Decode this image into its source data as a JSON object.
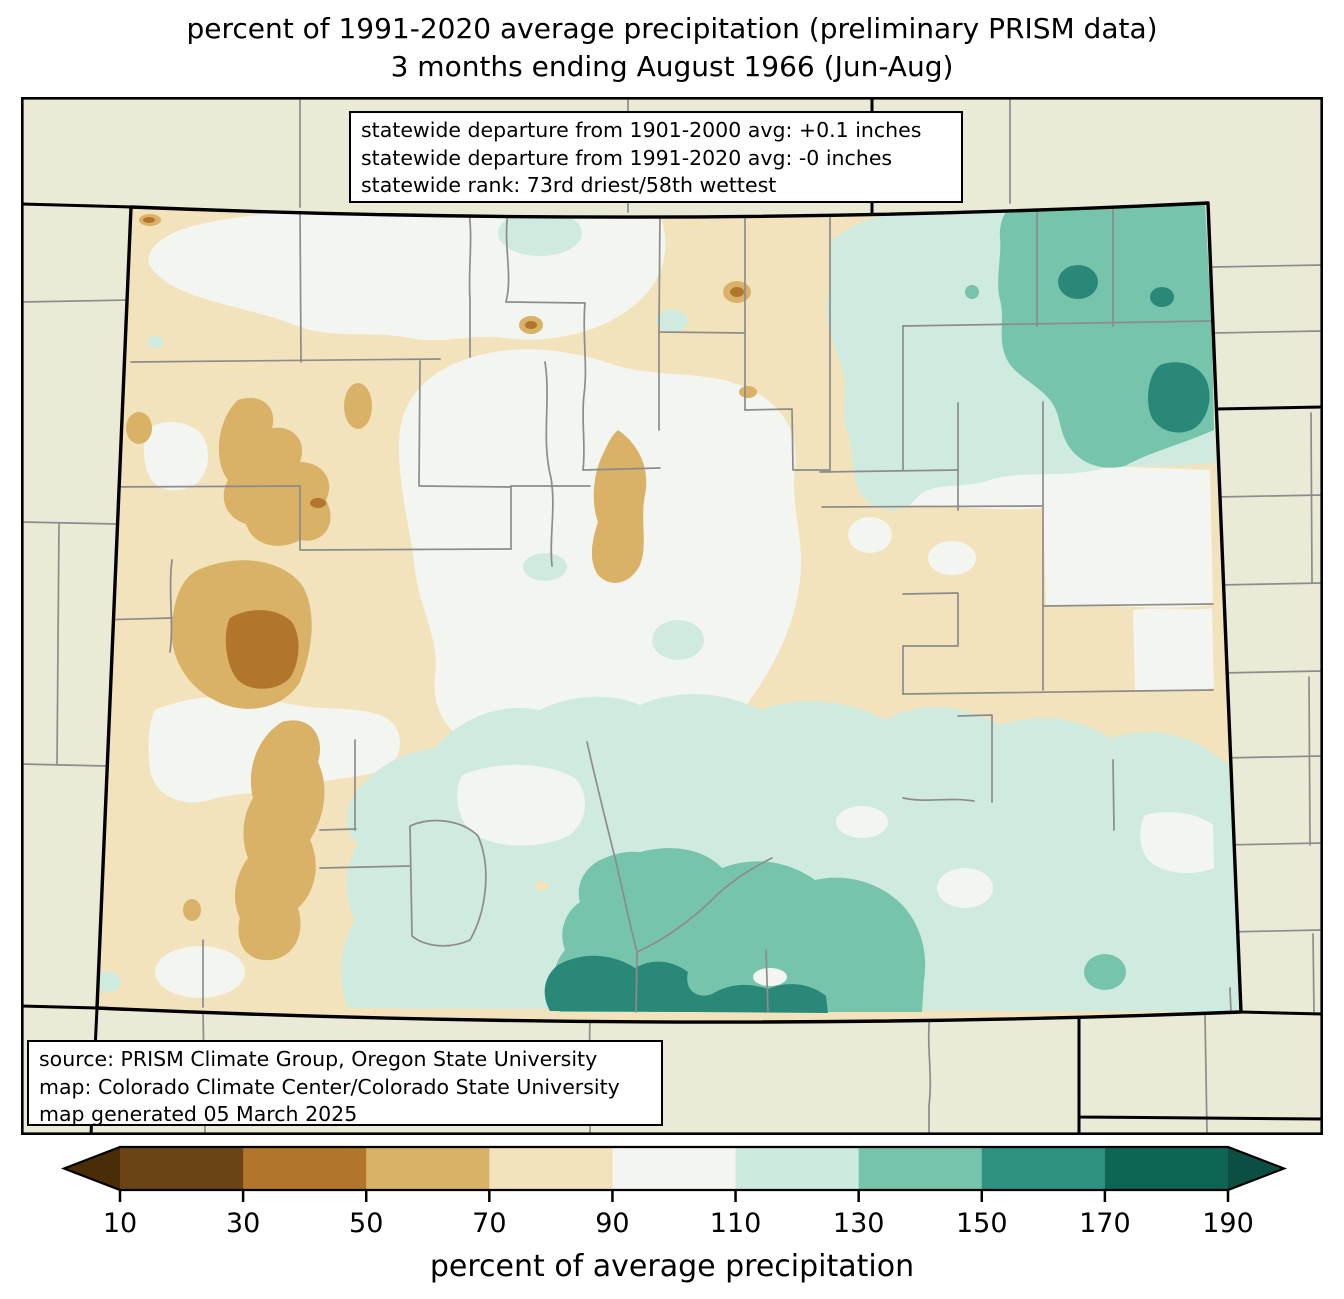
{
  "title": {
    "line1": "percent of 1991-2020 average precipitation (preliminary PRISM data)",
    "line2": "3 months ending August 1966 (Jun-Aug)"
  },
  "stats_box": {
    "line1": "statewide departure from 1901-2000 avg: +0.1 inches",
    "line2": "statewide departure from 1991-2020 avg: -0 inches",
    "line3": "statewide rank: 73rd driest/58th wettest"
  },
  "source_box": {
    "line1": "source: PRISM Climate Group, Oregon State University",
    "line2": "map: Colorado Climate Center/Colorado State University",
    "line3": "map generated 05 March 2025"
  },
  "map": {
    "region": "Colorado",
    "outside_fill": "#EBEAD6",
    "county_line_color": "#8C8C8C",
    "state_border_color": "#000000"
  },
  "colorbar": {
    "label": "percent of average precipitation",
    "ticks": [
      "10",
      "30",
      "50",
      "70",
      "90",
      "110",
      "130",
      "150",
      "170",
      "190"
    ],
    "band_colors": [
      "#6B4315",
      "#B1752B",
      "#D9B267",
      "#F2E3BC",
      "#F3F5F1",
      "#CCEADE",
      "#77C4AD",
      "#2F9180",
      "#0E6553"
    ],
    "under_arrow_color": "#4A2D07",
    "over_arrow_color": "#0A4F42"
  }
}
